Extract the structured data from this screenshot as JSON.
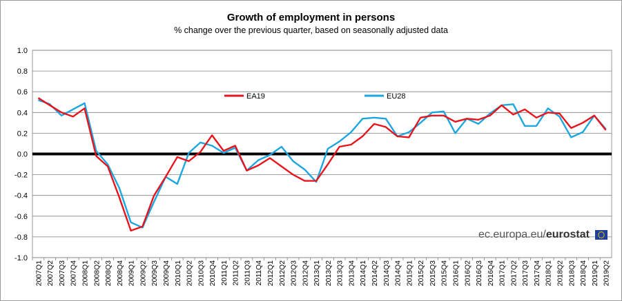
{
  "chart_data": {
    "type": "line",
    "title": "Growth of employment in persons",
    "subtitle": "% change over the previous quarter, based on seasonally adjusted data",
    "ylim": [
      -1.0,
      1.0
    ],
    "yticks": [
      "1.0",
      "0.8",
      "0.6",
      "0.4",
      "0.2",
      "0.0",
      "-0.2",
      "-0.4",
      "-0.6",
      "-0.8",
      "-1.0"
    ],
    "ytick_values": [
      1.0,
      0.8,
      0.6,
      0.4,
      0.2,
      0.0,
      -0.2,
      -0.4,
      -0.6,
      -0.8,
      -1.0
    ],
    "categories": [
      "2007Q1",
      "2007Q2",
      "2007Q3",
      "2007Q4",
      "2008Q1",
      "2008Q2",
      "2008Q3",
      "2008Q4",
      "2009Q1",
      "2009Q2",
      "2009Q3",
      "2009Q4",
      "2010Q1",
      "2010Q2",
      "2010Q3",
      "2010Q4",
      "2011Q1",
      "2011Q2",
      "2011Q3",
      "2011Q4",
      "2012Q1",
      "2012Q2",
      "2012Q3",
      "2012Q4",
      "2013Q1",
      "2013Q2",
      "2013Q3",
      "2013Q4",
      "2014Q1",
      "2014Q2",
      "2014Q3",
      "2014Q4",
      "2015Q1",
      "2015Q2",
      "2015Q3",
      "2015Q4",
      "2016Q1",
      "2016Q2",
      "2016Q3",
      "2016Q4",
      "2017Q1",
      "2017Q2",
      "2017Q3",
      "2017Q4",
      "2018Q1",
      "2018Q2",
      "2018Q3",
      "2018Q4",
      "2019Q1",
      "2019Q2"
    ],
    "series": [
      {
        "name": "EA19",
        "color": "#e8141c",
        "values": [
          0.54,
          0.47,
          0.4,
          0.36,
          0.44,
          -0.02,
          -0.12,
          -0.42,
          -0.74,
          -0.7,
          -0.4,
          -0.22,
          -0.03,
          -0.07,
          0.02,
          0.18,
          0.03,
          0.08,
          -0.16,
          -0.11,
          -0.04,
          -0.12,
          -0.2,
          -0.26,
          -0.26,
          -0.1,
          0.07,
          0.09,
          0.17,
          0.29,
          0.26,
          0.17,
          0.16,
          0.35,
          0.37,
          0.37,
          0.31,
          0.34,
          0.33,
          0.37,
          0.47,
          0.38,
          0.43,
          0.35,
          0.4,
          0.39,
          0.25,
          0.3,
          0.37,
          0.23
        ]
      },
      {
        "name": "EU28",
        "color": "#1ba6df",
        "values": [
          0.52,
          0.48,
          0.37,
          0.43,
          0.49,
          0.03,
          -0.1,
          -0.33,
          -0.66,
          -0.71,
          -0.46,
          -0.22,
          -0.29,
          0.01,
          0.11,
          0.08,
          0.01,
          0.06,
          -0.16,
          -0.06,
          -0.01,
          0.07,
          -0.07,
          -0.15,
          -0.27,
          0.05,
          0.12,
          0.21,
          0.34,
          0.35,
          0.34,
          0.17,
          0.21,
          0.3,
          0.4,
          0.41,
          0.2,
          0.34,
          0.29,
          0.39,
          0.47,
          0.48,
          0.27,
          0.27,
          0.44,
          0.36,
          0.16,
          0.21,
          0.37,
          0.24
        ]
      }
    ],
    "legend_position": "top-center",
    "xlabel": "",
    "ylabel": ""
  },
  "watermark": {
    "domain_text": "ec.europa.eu/",
    "brand_text": "eurostat"
  }
}
